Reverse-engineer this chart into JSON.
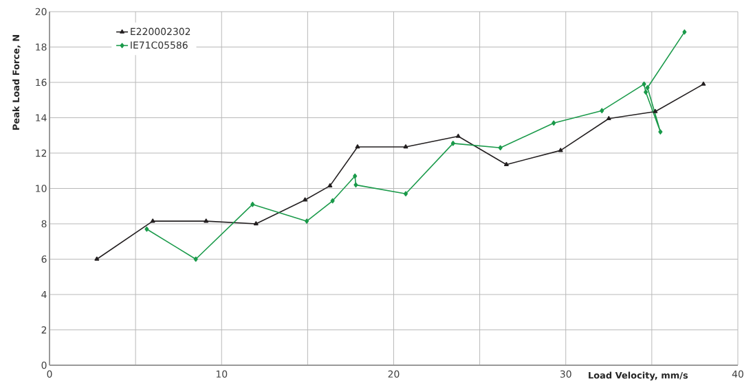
{
  "chart_data": {
    "type": "line",
    "xlabel": "Load Velocity, mm/s",
    "ylabel": "Peak Load Force, N",
    "xlim": [
      0,
      40
    ],
    "ylim": [
      0,
      20
    ],
    "xticks": [
      0,
      {
        "value": 5,
        "label": null
      },
      10,
      {
        "value": 15,
        "label": null
      },
      20,
      {
        "value": 25,
        "label": null
      },
      30,
      {
        "value": 35,
        "label": null
      },
      40
    ],
    "yticks": [
      0,
      2,
      4,
      6,
      8,
      10,
      12,
      14,
      16,
      18,
      20
    ],
    "grid": true,
    "legend": "top left",
    "line_style": "solid",
    "series": [
      {
        "name": "E220002302",
        "color": "#231f20",
        "marker": "triangle",
        "x": [
          2.75,
          6.0,
          9.1,
          12.0,
          14.85,
          16.3,
          17.9,
          20.7,
          23.75,
          26.55,
          29.7,
          32.5,
          35.2,
          38.0
        ],
        "values": [
          6.0,
          8.15,
          8.15,
          8.0,
          9.35,
          10.15,
          12.35,
          12.35,
          12.95,
          11.35,
          12.15,
          13.95,
          14.35,
          15.9
        ]
      },
      {
        "name": "IE71C05586",
        "color": "#1a9a4a",
        "marker": "diamond",
        "x": [
          5.65,
          8.5,
          11.8,
          14.95,
          16.45,
          17.75,
          17.8,
          20.7,
          23.45,
          26.2,
          29.3,
          32.1,
          34.55,
          34.65,
          35.5,
          34.75,
          36.9
        ],
        "values": [
          7.7,
          6.0,
          9.1,
          8.15,
          9.3,
          10.7,
          10.2,
          9.7,
          12.55,
          12.3,
          13.7,
          14.4,
          15.9,
          15.45,
          13.2,
          15.7,
          18.85
        ]
      }
    ]
  }
}
